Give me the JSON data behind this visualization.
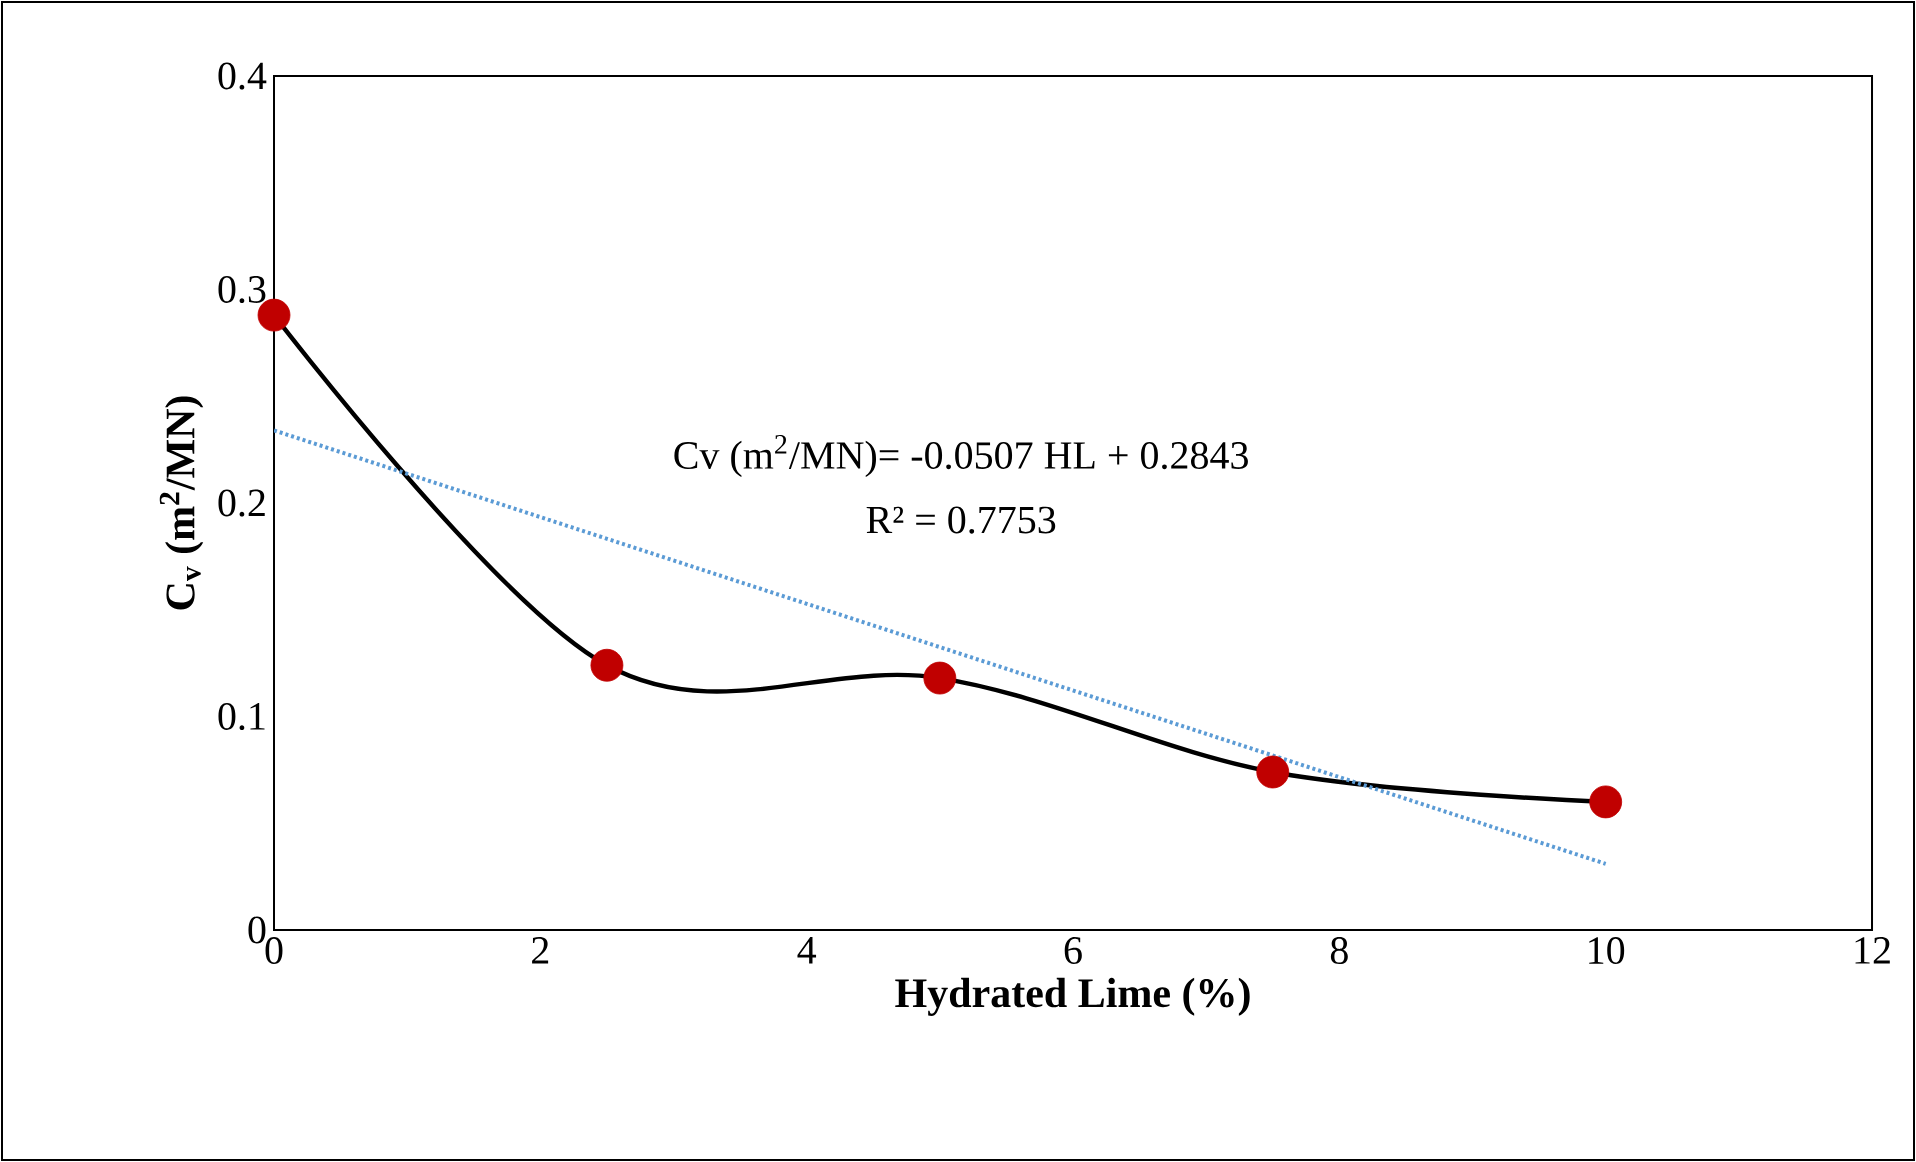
{
  "chart_data": {
    "type": "line",
    "xlabel": "Hydrated Lime (%)",
    "ylabel": "C$_{v}$ (m$^{2}$/MN)",
    "x": [
      0,
      2.5,
      5,
      7.5,
      10
    ],
    "series": [
      {
        "color": "#000000",
        "colors": [
          "#c00000",
          "#c00000",
          "#c00000",
          "#c00000",
          "#c00000"
        ],
        "values": [
          0.288,
          0.124,
          0.118,
          0.074,
          0.06
        ],
        "marker": "circle",
        "line_style": "solid"
      },
      {
        "type": "line",
        "x": [
          0,
          10
        ],
        "color": "#5b9bd5",
        "values": [
          0.234,
          0.031
        ],
        "marker": "none",
        "line_style": "dotted"
      }
    ],
    "annotations": [
      "Cv (m$^{2}$/MN)= -0.0507 HL + 0.2843",
      "R² = 0.7753"
    ],
    "xlim": [
      0,
      12
    ],
    "ylim": [
      0,
      0.4
    ],
    "xticks": [
      0,
      2,
      4,
      6,
      8,
      10,
      12
    ],
    "yticks": [
      0,
      {
        "value": 0.1,
        "label": "0.1"
      },
      {
        "value": 0.2,
        "label": "0.2"
      },
      {
        "value": 0.3,
        "label": "0.3"
      },
      {
        "value": 0.4,
        "label": "0.4"
      }
    ],
    "grid": false
  }
}
